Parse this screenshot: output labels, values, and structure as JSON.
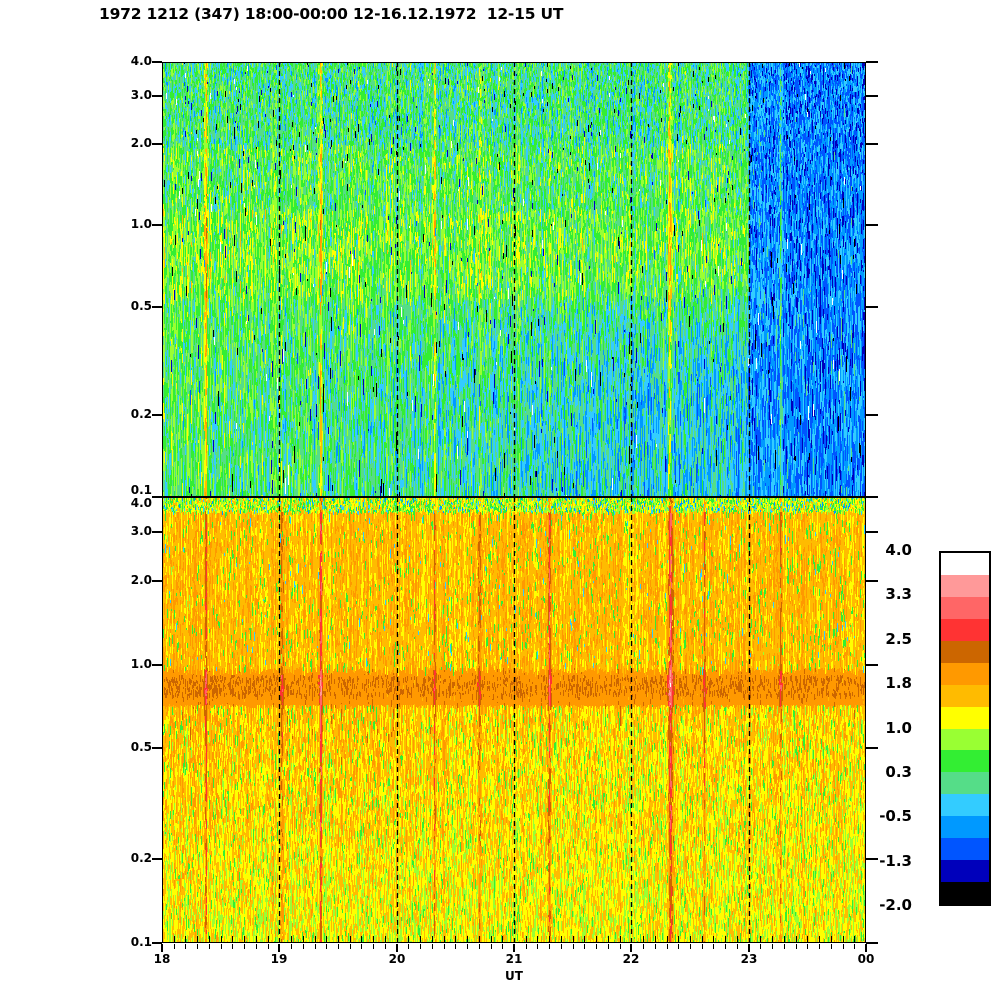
{
  "title": "1972 1212 (347) 18:00-00:00 12-16.12.1972  12-15 UT",
  "chart_data": {
    "type": "heatmap",
    "title": "1972 1212 (347) 18:00-00:00 12-16.12.1972  12-15 UT",
    "xlabel": "UT",
    "x_range_hours": [
      18,
      24
    ],
    "x_tick_labels": [
      "18",
      "19",
      "20",
      "21",
      "22",
      "23",
      "00"
    ],
    "x_minor_tick_minutes": 6,
    "y_scale": "log",
    "y_range": [
      0.1,
      4.0
    ],
    "y_tick_values": [
      4.0,
      3.0,
      2.0,
      1.0,
      0.5,
      0.2,
      0.1
    ],
    "y_tick_labels": [
      "4.0",
      "3.0",
      "2.0",
      "1.0",
      "0.5",
      "0.2",
      "0.1"
    ],
    "grid": "dashed vertical lines at each hour",
    "colorbar": {
      "range": [
        -2.0,
        4.0
      ],
      "n_levels": 16,
      "tick_labels": [
        "4.0",
        "3.3",
        "2.5",
        "1.8",
        "1.0",
        "0.3",
        "-0.5",
        "-1.3",
        "-2.0"
      ],
      "colors_bottom_to_top": [
        "#000000",
        "#0000bb",
        "#0055ff",
        "#0099ff",
        "#33ccff",
        "#55dd88",
        "#33ee33",
        "#99ff33",
        "#ffff00",
        "#ffbb00",
        "#ff9900",
        "#cc6600",
        "#ff3333",
        "#ff6666",
        "#ff9999",
        "#ffffff"
      ]
    },
    "panels": [
      {
        "id": "upper",
        "description": "green/cyan speckle noise; brighter yellow-green band near 0.6-1.1; lower half turns cyan-blue toward later hours; strongly blue after 23 UT; sparse black/white/dark-blue specks",
        "mean_level": 0.38,
        "level_after_23": -0.85,
        "midband_boost": {
          "f_low": 0.55,
          "f_high": 1.15,
          "boost": 0.25
        }
      },
      {
        "id": "lower",
        "description": "yellow/amber/orange speckle noise; strong orange band near f=0.72-0.98 with dark brown speckles in core 0.78-0.92; yellow-dominant at lowest frequencies; green specks throughout; thin green/cyan row at top edge",
        "mean_level": 1.5,
        "band": {
          "f_low": 0.72,
          "f_high": 0.98,
          "level": 1.95,
          "speckle_core": [
            0.78,
            0.92
          ],
          "speckle_level": 2.3
        }
      }
    ],
    "event_streaks_ut": [
      {
        "t": 18.37,
        "upper": 1.25,
        "lower": 0.95,
        "w": 0.013
      },
      {
        "t": 19.02,
        "upper": 0.3,
        "lower": 0.6,
        "w": 0.012
      },
      {
        "t": 19.35,
        "upper": 1.35,
        "lower": 1.25,
        "w": 0.013
      },
      {
        "t": 20.32,
        "upper": 0.9,
        "lower": 0.7,
        "w": 0.012
      },
      {
        "t": 20.7,
        "upper": 0.5,
        "lower": 0.55,
        "w": 0.012
      },
      {
        "t": 21.3,
        "upper": 0.4,
        "lower": 1.15,
        "w": 0.011
      },
      {
        "t": 22.33,
        "upper": 1.1,
        "lower": 1.25,
        "w": 0.022
      },
      {
        "t": 22.62,
        "upper": 0.3,
        "lower": 0.8,
        "w": 0.012
      },
      {
        "t": 23.27,
        "upper": 0.9,
        "lower": 0.7,
        "w": 0.012
      }
    ],
    "noise_seed": 42
  }
}
